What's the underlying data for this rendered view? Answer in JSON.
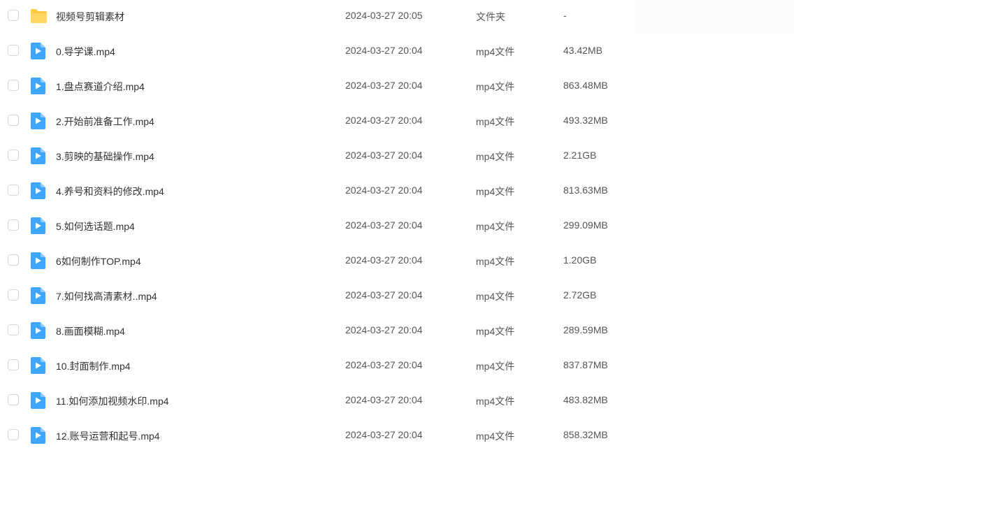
{
  "colors": {
    "folder": "#ffc83d",
    "video": "#3ea6ff"
  },
  "files": [
    {
      "name": "视频号剪辑素材",
      "date": "2024-03-27 20:05",
      "type": "文件夹",
      "size": "-",
      "icon": "folder-icon"
    },
    {
      "name": "0.导学课.mp4",
      "date": "2024-03-27 20:04",
      "type": "mp4文件",
      "size": "43.42MB",
      "icon": "video-file-icon"
    },
    {
      "name": "1.盘点赛道介绍.mp4",
      "date": "2024-03-27 20:04",
      "type": "mp4文件",
      "size": "863.48MB",
      "icon": "video-file-icon"
    },
    {
      "name": "2.开始前准备工作.mp4",
      "date": "2024-03-27 20:04",
      "type": "mp4文件",
      "size": "493.32MB",
      "icon": "video-file-icon"
    },
    {
      "name": "3.剪映的基础操作.mp4",
      "date": "2024-03-27 20:04",
      "type": "mp4文件",
      "size": "2.21GB",
      "icon": "video-file-icon"
    },
    {
      "name": "4.养号和资料的修改.mp4",
      "date": "2024-03-27 20:04",
      "type": "mp4文件",
      "size": "813.63MB",
      "icon": "video-file-icon"
    },
    {
      "name": "5.如何选话题.mp4",
      "date": "2024-03-27 20:04",
      "type": "mp4文件",
      "size": "299.09MB",
      "icon": "video-file-icon"
    },
    {
      "name": "6如何制作TOP.mp4",
      "date": "2024-03-27 20:04",
      "type": "mp4文件",
      "size": "1.20GB",
      "icon": "video-file-icon"
    },
    {
      "name": "7.如何找高清素材..mp4",
      "date": "2024-03-27 20:04",
      "type": "mp4文件",
      "size": "2.72GB",
      "icon": "video-file-icon"
    },
    {
      "name": "8.画面模糊.mp4",
      "date": "2024-03-27 20:04",
      "type": "mp4文件",
      "size": "289.59MB",
      "icon": "video-file-icon"
    },
    {
      "name": "10.封面制作.mp4",
      "date": "2024-03-27 20:04",
      "type": "mp4文件",
      "size": "837.87MB",
      "icon": "video-file-icon"
    },
    {
      "name": "11.如何添加视频水印.mp4",
      "date": "2024-03-27 20:04",
      "type": "mp4文件",
      "size": "483.82MB",
      "icon": "video-file-icon"
    },
    {
      "name": "12.账号运营和起号.mp4",
      "date": "2024-03-27 20:04",
      "type": "mp4文件",
      "size": "858.32MB",
      "icon": "video-file-icon"
    }
  ]
}
